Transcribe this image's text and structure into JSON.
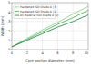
{
  "chart_data": {
    "type": "line",
    "x_label": "Core section diameter (mm)",
    "y_label": "Width (mm)",
    "x": [
      0,
      2,
      4,
      6,
      8,
      10
    ],
    "series": [
      {
        "name": "Hardened ISO Grade A (3)",
        "color": "#8fd48f",
        "values": [
          0.3,
          1.2,
          2.1,
          2.9,
          3.8,
          4.6
        ]
      },
      {
        "name": "Hardened ISO Grade A (2)",
        "color": "#55b855",
        "values": [
          0.3,
          1.1,
          1.9,
          2.7,
          3.4,
          4.2
        ]
      },
      {
        "name": "All Material ISO Grade A (2)",
        "color": "#2e8b57",
        "values": [
          0.3,
          1.0,
          1.7,
          2.4,
          3.0,
          3.7
        ]
      }
    ],
    "xlim": [
      0,
      10
    ],
    "xticks": [
      0,
      2,
      4,
      6,
      8,
      10
    ],
    "ylim": [
      0,
      5
    ],
    "yticks": [
      0,
      1,
      2,
      3,
      4,
      5
    ],
    "grid": true,
    "legend": "upper-left"
  }
}
